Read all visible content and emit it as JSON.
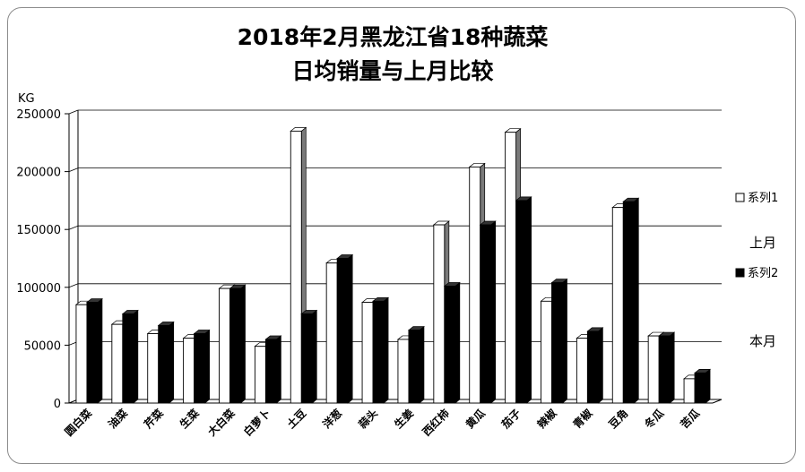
{
  "chart_data": {
    "type": "bar",
    "title_line1": "2018年2月黑龙江省18种蔬菜",
    "title_line2": "日均销量与上月比较",
    "ylabel": "KG",
    "ylim": [
      0,
      250000
    ],
    "yticks": [
      0,
      50000,
      100000,
      150000,
      200000,
      250000
    ],
    "categories": [
      "圆白菜",
      "油菜",
      "芹菜",
      "生菜",
      "大白菜",
      "白萝卜",
      "土豆",
      "洋葱",
      "蒜头",
      "生姜",
      "西红柿",
      "黄瓜",
      "茄子",
      "辣椒",
      "青椒",
      "豆角",
      "冬瓜",
      "苦瓜"
    ],
    "series": [
      {
        "name": "系列1",
        "color": "#ffffff",
        "values": [
          85000,
          68000,
          60000,
          56000,
          99000,
          49000,
          235000,
          121000,
          87000,
          55000,
          154000,
          204000,
          234000,
          88000,
          56000,
          169000,
          58000,
          21000
        ]
      },
      {
        "name": "系列2",
        "color": "#000000",
        "values": [
          87000,
          77000,
          67000,
          60000,
          99000,
          55000,
          77000,
          125000,
          88000,
          63000,
          101000,
          154000,
          175000,
          104000,
          62000,
          174000,
          58000,
          26000
        ]
      }
    ],
    "legend_position": "right",
    "side_labels": [
      "上月",
      "本月"
    ],
    "grid": true
  }
}
